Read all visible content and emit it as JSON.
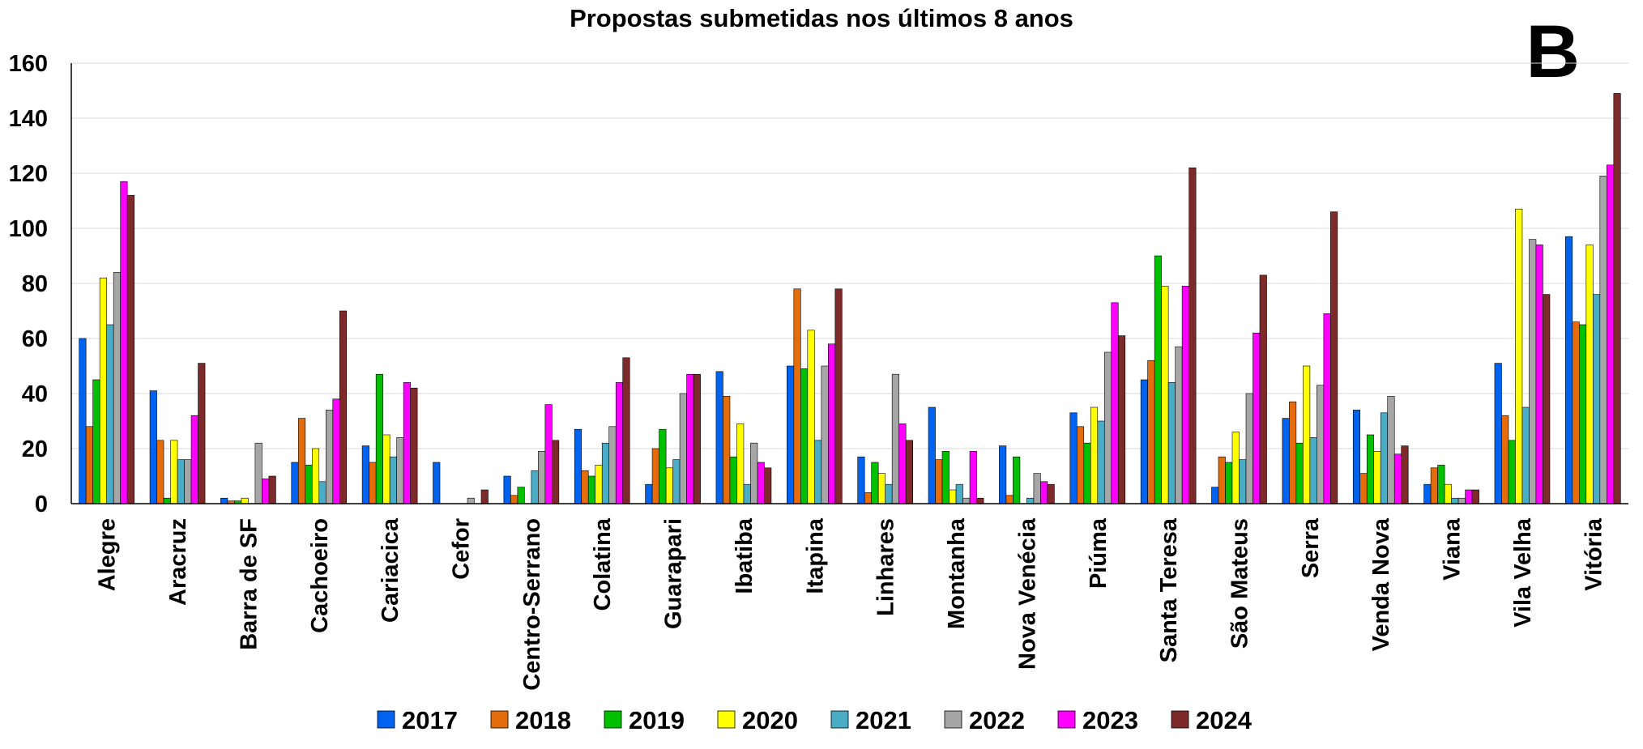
{
  "panel_label": "B",
  "chart_data": {
    "type": "bar",
    "title": "Propostas submetidas nos últimos 8 anos",
    "xlabel": "",
    "ylabel": "",
    "ylim": [
      0,
      160
    ],
    "yticks": [
      0,
      20,
      40,
      60,
      80,
      100,
      120,
      140,
      160
    ],
    "grid": true,
    "legend_position": "bottom",
    "categories": [
      "Alegre",
      "Aracruz",
      "Barra de SF",
      "Cachoeiro",
      "Cariacica",
      "Cefor",
      "Centro-Serrano",
      "Colatina",
      "Guarapari",
      "Ibatiba",
      "Itapina",
      "Linhares",
      "Montanha",
      "Nova Venécia",
      "Piúma",
      "Santa Teresa",
      "São Mateus",
      "Serra",
      "Venda Nova",
      "Viana",
      "Vila Velha",
      "Vitória"
    ],
    "series": [
      {
        "name": "2017",
        "color": "#0063f0",
        "values": [
          60,
          41,
          2,
          15,
          21,
          15,
          10,
          27,
          7,
          48,
          50,
          17,
          35,
          21,
          33,
          45,
          6,
          31,
          34,
          7,
          51,
          97
        ]
      },
      {
        "name": "2018",
        "color": "#e46c0a",
        "values": [
          28,
          23,
          1,
          31,
          15,
          0,
          3,
          12,
          20,
          39,
          78,
          4,
          16,
          3,
          28,
          52,
          17,
          37,
          11,
          13,
          32,
          66
        ]
      },
      {
        "name": "2019",
        "color": "#00c000",
        "values": [
          45,
          2,
          1,
          14,
          47,
          0,
          6,
          10,
          27,
          17,
          49,
          15,
          19,
          17,
          22,
          90,
          15,
          22,
          25,
          14,
          23,
          65
        ]
      },
      {
        "name": "2020",
        "color": "#ffff00",
        "values": [
          82,
          23,
          2,
          20,
          25,
          0,
          0,
          14,
          13,
          29,
          63,
          11,
          5,
          0,
          35,
          79,
          26,
          50,
          19,
          7,
          107,
          94
        ]
      },
      {
        "name": "2021",
        "color": "#4bacc6",
        "values": [
          65,
          16,
          0,
          8,
          17,
          0,
          12,
          22,
          16,
          7,
          23,
          7,
          7,
          2,
          30,
          44,
          16,
          24,
          33,
          2,
          35,
          76
        ]
      },
      {
        "name": "2022",
        "color": "#a6a6a6",
        "values": [
          84,
          16,
          22,
          34,
          24,
          2,
          19,
          28,
          40,
          22,
          50,
          47,
          2,
          11,
          55,
          57,
          40,
          43,
          39,
          2,
          96,
          119
        ]
      },
      {
        "name": "2023",
        "color": "#ff00ff",
        "values": [
          117,
          32,
          9,
          38,
          44,
          0,
          36,
          44,
          47,
          15,
          58,
          29,
          19,
          8,
          73,
          79,
          62,
          69,
          18,
          5,
          94,
          123
        ]
      },
      {
        "name": "2024",
        "color": "#7f2a2a",
        "values": [
          112,
          51,
          10,
          70,
          42,
          5,
          23,
          53,
          47,
          13,
          78,
          23,
          2,
          7,
          61,
          122,
          83,
          106,
          21,
          5,
          76,
          149
        ]
      }
    ]
  }
}
